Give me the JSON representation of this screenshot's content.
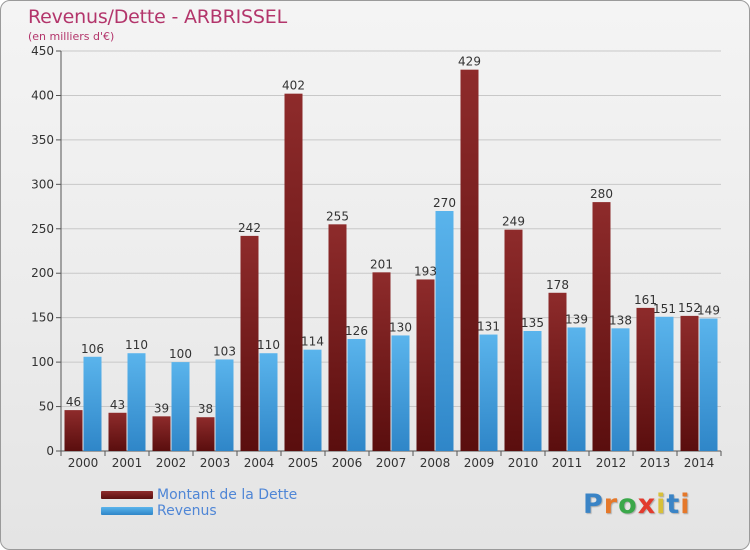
{
  "title": "Revenus/Dette - ARBRISSEL",
  "subtitle": "(en milliers d'€)",
  "logo": {
    "letters": [
      "P",
      "r",
      "o",
      "x",
      "i",
      "t",
      "i"
    ],
    "colors": [
      "#3a84c6",
      "#e5782a",
      "#3aa84a",
      "#e23b2e",
      "#d8c03a",
      "#3a84c6",
      "#e5782a"
    ]
  },
  "colors": {
    "dette": "#7a1f1f",
    "revenus": "#4aa3e0",
    "title": "#b3356b",
    "legend_text": "#4f86d6"
  },
  "chart_data": {
    "type": "bar",
    "title": "Revenus/Dette - ARBRISSEL",
    "subtitle": "(en milliers d'€)",
    "categories": [
      "2000",
      "2001",
      "2002",
      "2003",
      "2004",
      "2005",
      "2006",
      "2007",
      "2008",
      "2009",
      "2010",
      "2011",
      "2012",
      "2013",
      "2014"
    ],
    "series": [
      {
        "name": "Montant de la Dette",
        "values": [
          46,
          43,
          39,
          38,
          242,
          402,
          255,
          201,
          193,
          429,
          249,
          178,
          280,
          161,
          152
        ]
      },
      {
        "name": "Revenus",
        "values": [
          106,
          110,
          100,
          103,
          110,
          114,
          126,
          130,
          270,
          131,
          135,
          139,
          138,
          151,
          149
        ]
      }
    ],
    "ylim": [
      0,
      450
    ],
    "yticks": [
      "0",
      "50",
      "100",
      "150",
      "200",
      "250",
      "300",
      "350",
      "400",
      "450"
    ],
    "grid": true,
    "legend_position": "bottom-left"
  }
}
